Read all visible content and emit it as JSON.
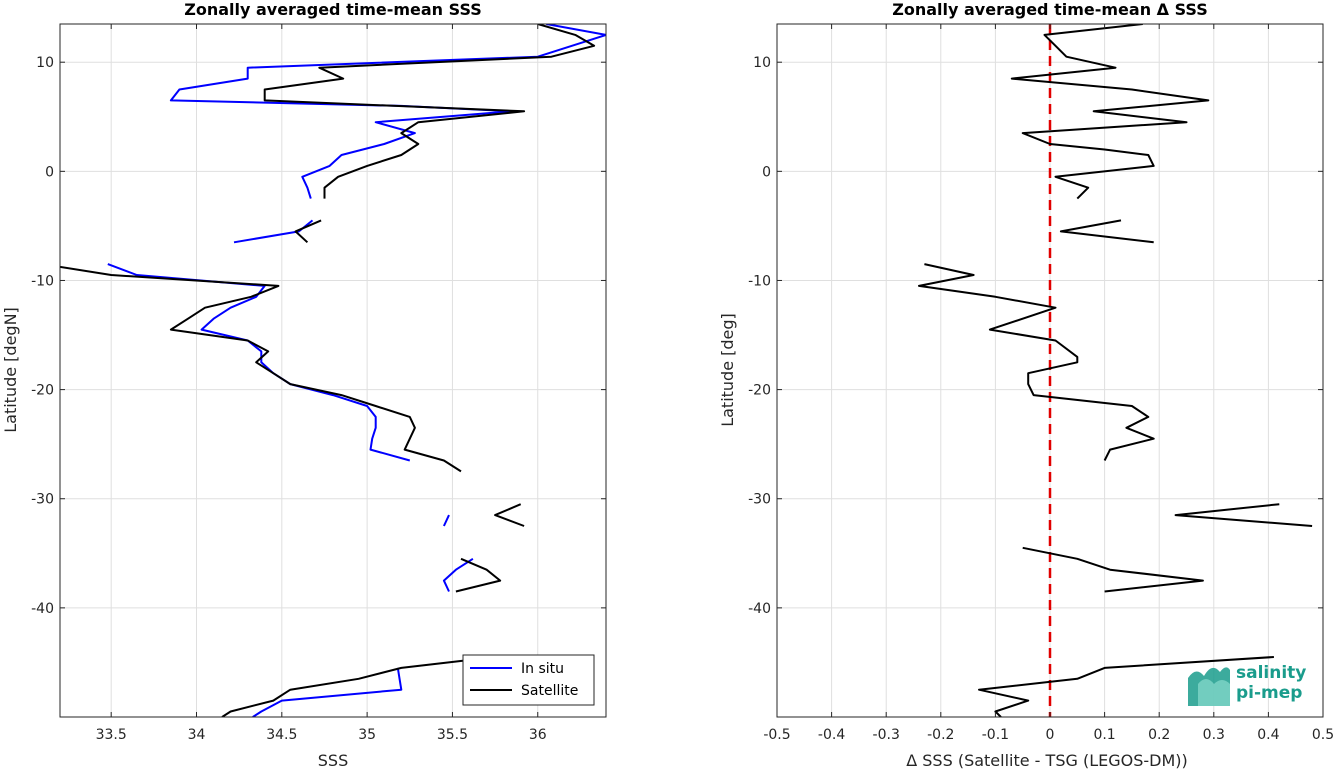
{
  "chart_data": [
    {
      "type": "line",
      "title": "Zonally averaged time-mean SSS",
      "xlabel": "SSS",
      "ylabel": "Latitude [degN]",
      "xlim": [
        33.2,
        36.4
      ],
      "ylim": [
        -50,
        13.5
      ],
      "xticks": [
        33.5,
        34,
        34.5,
        35,
        35.5,
        36
      ],
      "xtick_labels": [
        "33.5",
        "34",
        "34.5",
        "35",
        "35.5",
        "36"
      ],
      "yticks": [
        10,
        0,
        -10,
        -20,
        -30,
        -40
      ],
      "ytick_labels": [
        "10",
        "0",
        "-10",
        "-20",
        "-30",
        "-40"
      ],
      "grid": true,
      "legend_position": "bottom-right",
      "series": [
        {
          "name": "In situ",
          "color": "#0000ff",
          "segments": [
            [
              [
                36.05,
                13.5
              ],
              [
                36.4,
                12.5
              ],
              [
                36.2,
                11.5
              ],
              [
                36.0,
                10.5
              ],
              [
                34.3,
                9.5
              ],
              [
                34.3,
                8.5
              ],
              [
                33.9,
                7.5
              ],
              [
                33.85,
                6.5
              ],
              [
                35.2,
                6.0
              ],
              [
                35.85,
                5.5
              ],
              [
                35.05,
                4.5
              ],
              [
                35.28,
                3.5
              ],
              [
                35.1,
                2.5
              ],
              [
                34.85,
                1.5
              ],
              [
                34.78,
                0.5
              ],
              [
                34.62,
                -0.5
              ],
              [
                34.65,
                -1.5
              ],
              [
                34.67,
                -2.5
              ]
            ],
            [
              [
                34.22,
                -6.5
              ],
              [
                34.6,
                -5.5
              ],
              [
                34.68,
                -4.5
              ]
            ],
            [
              [
                33.48,
                -8.5
              ],
              [
                33.65,
                -9.5
              ],
              [
                34.4,
                -10.5
              ],
              [
                34.35,
                -11.5
              ],
              [
                34.2,
                -12.5
              ],
              [
                34.1,
                -13.5
              ],
              [
                34.03,
                -14.5
              ],
              [
                34.3,
                -15.5
              ],
              [
                34.38,
                -16.5
              ],
              [
                34.38,
                -17.5
              ],
              [
                34.45,
                -18.5
              ],
              [
                34.55,
                -19.5
              ],
              [
                34.8,
                -20.5
              ],
              [
                35.0,
                -21.5
              ],
              [
                35.05,
                -22.5
              ],
              [
                35.05,
                -23.5
              ],
              [
                35.03,
                -24.5
              ],
              [
                35.02,
                -25.5
              ],
              [
                35.25,
                -26.5
              ]
            ],
            [
              [
                35.48,
                -31.5
              ],
              [
                35.45,
                -32.5
              ]
            ],
            [
              [
                35.62,
                -35.5
              ],
              [
                35.52,
                -36.5
              ],
              [
                35.45,
                -37.5
              ],
              [
                35.48,
                -38.5
              ]
            ],
            [
              [
                35.18,
                -45.5
              ],
              [
                35.2,
                -47.5
              ],
              [
                34.5,
                -48.5
              ],
              [
                34.38,
                -49.5
              ],
              [
                34.33,
                -50
              ]
            ]
          ]
        },
        {
          "name": "Satellite",
          "color": "#000000",
          "segments": [
            [
              [
                36.0,
                13.5
              ],
              [
                36.22,
                12.5
              ],
              [
                36.33,
                11.5
              ],
              [
                36.08,
                10.5
              ],
              [
                34.72,
                9.5
              ],
              [
                34.86,
                8.5
              ],
              [
                34.4,
                7.5
              ],
              [
                34.4,
                6.5
              ],
              [
                35.92,
                5.5
              ],
              [
                35.3,
                4.5
              ],
              [
                35.2,
                3.5
              ],
              [
                35.3,
                2.5
              ],
              [
                35.2,
                1.5
              ],
              [
                35.0,
                0.5
              ],
              [
                34.83,
                -0.5
              ],
              [
                34.75,
                -1.5
              ],
              [
                34.75,
                -2.5
              ]
            ],
            [
              [
                34.65,
                -6.5
              ],
              [
                34.58,
                -5.5
              ],
              [
                34.73,
                -4.5
              ]
            ],
            [
              [
                33.1,
                -8.5
              ],
              [
                33.5,
                -9.5
              ],
              [
                34.48,
                -10.5
              ],
              [
                34.32,
                -11.5
              ],
              [
                34.05,
                -12.5
              ],
              [
                33.95,
                -13.5
              ],
              [
                33.85,
                -14.5
              ],
              [
                34.3,
                -15.5
              ],
              [
                34.42,
                -16.5
              ],
              [
                34.35,
                -17.5
              ],
              [
                34.45,
                -18.5
              ],
              [
                34.55,
                -19.5
              ],
              [
                34.85,
                -20.5
              ],
              [
                35.05,
                -21.5
              ],
              [
                35.25,
                -22.5
              ],
              [
                35.28,
                -23.5
              ],
              [
                35.25,
                -24.5
              ],
              [
                35.22,
                -25.5
              ],
              [
                35.45,
                -26.5
              ],
              [
                35.55,
                -27.5
              ]
            ],
            [
              [
                35.9,
                -30.5
              ],
              [
                35.75,
                -31.5
              ],
              [
                35.92,
                -32.5
              ]
            ],
            [
              [
                35.55,
                -35.5
              ],
              [
                35.7,
                -36.5
              ],
              [
                35.78,
                -37.5
              ],
              [
                35.52,
                -38.5
              ]
            ],
            [
              [
                35.75,
                -44.5
              ],
              [
                35.2,
                -45.5
              ],
              [
                34.95,
                -46.5
              ],
              [
                34.55,
                -47.5
              ],
              [
                34.45,
                -48.5
              ],
              [
                34.2,
                -49.5
              ],
              [
                34.15,
                -50
              ]
            ]
          ]
        }
      ]
    },
    {
      "type": "line",
      "title": "Zonally averaged time-mean Δ SSS",
      "xlabel": "Δ SSS (Satellite - TSG (LEGOS-DM))",
      "ylabel": "Latitude [deg]",
      "xlim": [
        -0.5,
        0.5
      ],
      "ylim": [
        -50,
        13.5
      ],
      "xticks": [
        -0.5,
        -0.4,
        -0.3,
        -0.2,
        -0.1,
        0,
        0.1,
        0.2,
        0.3,
        0.4,
        0.5
      ],
      "xtick_labels": [
        "-0.5",
        "-0.4",
        "-0.3",
        "-0.2",
        "-0.1",
        "0",
        "0.1",
        "0.2",
        "0.3",
        "0.4",
        "0.5"
      ],
      "yticks": [
        10,
        0,
        -10,
        -20,
        -30,
        -40
      ],
      "ytick_labels": [
        "10",
        "0",
        "-10",
        "-20",
        "-30",
        "-40"
      ],
      "grid": true,
      "reference_line": {
        "x": 0,
        "color": "#e00000",
        "style": "dashed"
      },
      "series": [
        {
          "color": "#000000",
          "segments": [
            [
              [
                0.17,
                13.5
              ],
              [
                -0.01,
                12.5
              ],
              [
                0.01,
                11.5
              ],
              [
                0.03,
                10.5
              ],
              [
                0.12,
                9.5
              ],
              [
                -0.07,
                8.5
              ],
              [
                0.15,
                7.5
              ],
              [
                0.29,
                6.5
              ],
              [
                0.08,
                5.5
              ],
              [
                0.25,
                4.5
              ],
              [
                -0.05,
                3.5
              ],
              [
                0.0,
                2.5
              ],
              [
                0.1,
                2.0
              ],
              [
                0.18,
                1.5
              ],
              [
                0.19,
                0.5
              ],
              [
                0.01,
                -0.5
              ],
              [
                0.07,
                -1.5
              ],
              [
                0.05,
                -2.5
              ]
            ],
            [
              [
                0.19,
                -6.5
              ],
              [
                0.02,
                -5.5
              ],
              [
                0.13,
                -4.5
              ]
            ],
            [
              [
                -0.23,
                -8.5
              ],
              [
                -0.14,
                -9.5
              ],
              [
                -0.24,
                -10.5
              ],
              [
                -0.1,
                -11.5
              ],
              [
                0.01,
                -12.5
              ],
              [
                -0.11,
                -14.5
              ],
              [
                0.01,
                -15.5
              ],
              [
                0.05,
                -17.0
              ],
              [
                0.05,
                -17.5
              ],
              [
                -0.04,
                -18.5
              ],
              [
                -0.04,
                -19.5
              ],
              [
                -0.03,
                -20.5
              ],
              [
                0.15,
                -21.5
              ],
              [
                0.18,
                -22.5
              ],
              [
                0.14,
                -23.5
              ],
              [
                0.19,
                -24.5
              ],
              [
                0.11,
                -25.5
              ],
              [
                0.1,
                -26.5
              ]
            ],
            [
              [
                0.42,
                -30.5
              ],
              [
                0.23,
                -31.5
              ],
              [
                0.48,
                -32.5
              ]
            ],
            [
              [
                -0.05,
                -34.5
              ],
              [
                0.05,
                -35.5
              ],
              [
                0.11,
                -36.5
              ],
              [
                0.28,
                -37.5
              ],
              [
                0.1,
                -38.5
              ]
            ],
            [
              [
                0.41,
                -44.5
              ],
              [
                0.1,
                -45.5
              ],
              [
                0.05,
                -46.5
              ],
              [
                -0.13,
                -47.5
              ],
              [
                -0.04,
                -48.5
              ],
              [
                -0.1,
                -49.5
              ],
              [
                -0.09,
                -50
              ]
            ]
          ]
        }
      ]
    }
  ],
  "legend": {
    "entries": [
      {
        "label": "In situ",
        "color": "#0000ff"
      },
      {
        "label": "Satellite",
        "color": "#000000"
      }
    ]
  },
  "logo": {
    "line1": "salinity",
    "line2": "pi-mep"
  }
}
